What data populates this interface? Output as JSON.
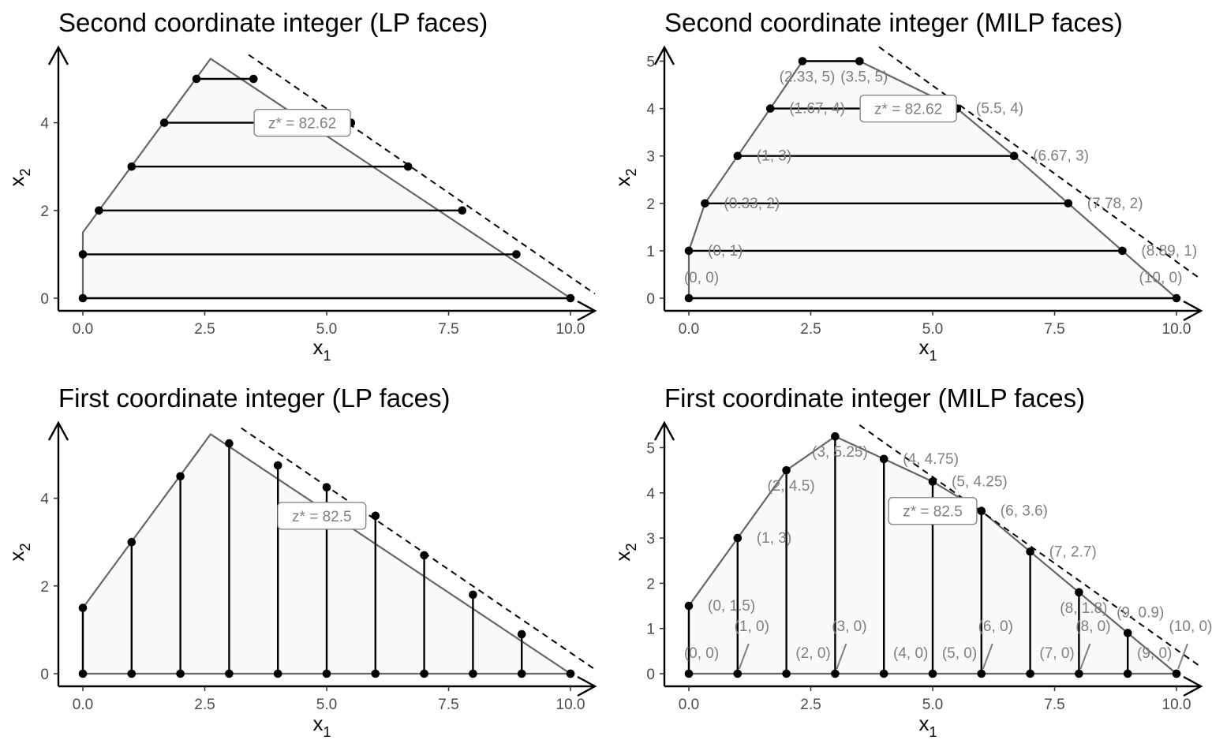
{
  "chart_data": [
    {
      "type": "line",
      "panel": "top-left",
      "title": "Second coordinate integer (LP faces)",
      "xlabel": "x",
      "xlabel_sub": "1",
      "ylabel": "x",
      "ylabel_sub": "2",
      "xlim": [
        0,
        10
      ],
      "ylim": [
        0,
        5.46
      ],
      "xticks": [
        0,
        2.5,
        5,
        7.5,
        10
      ],
      "xtick_labels": [
        "0.0",
        "2.5",
        "5.0",
        "7.5",
        "10.0"
      ],
      "yticks": [
        0,
        2,
        4
      ],
      "ytick_labels": [
        "0",
        "2",
        "4"
      ],
      "region": [
        [
          0,
          0
        ],
        [
          10,
          0
        ],
        [
          2.62,
          5.46
        ],
        [
          0,
          1.5
        ]
      ],
      "objective_line": [
        [
          3.4,
          5.55
        ],
        [
          10.5,
          0.1
        ]
      ],
      "objective_label": "z* = 82.62",
      "objective_label_at": [
        4.5,
        4.0
      ],
      "faces": [
        {
          "from": [
            0,
            0
          ],
          "to": [
            10,
            0
          ]
        },
        {
          "from": [
            0,
            1
          ],
          "to": [
            8.89,
            1
          ]
        },
        {
          "from": [
            0.33,
            2
          ],
          "to": [
            7.78,
            2
          ]
        },
        {
          "from": [
            1,
            3
          ],
          "to": [
            6.67,
            3
          ]
        },
        {
          "from": [
            1.67,
            4
          ],
          "to": [
            5.5,
            4
          ]
        },
        {
          "from": [
            2.33,
            5
          ],
          "to": [
            3.5,
            5
          ]
        }
      ],
      "point_labels": []
    },
    {
      "type": "line",
      "panel": "top-right",
      "title": "Second coordinate integer (MILP faces)",
      "xlabel": "x",
      "xlabel_sub": "1",
      "ylabel": "x",
      "ylabel_sub": "2",
      "xlim": [
        0,
        10
      ],
      "ylim": [
        0,
        5.2
      ],
      "xticks": [
        0,
        2.5,
        5,
        7.5,
        10
      ],
      "xtick_labels": [
        "0.0",
        "2.5",
        "5.0",
        "7.5",
        "10.0"
      ],
      "yticks": [
        0,
        1,
        2,
        3,
        4,
        5
      ],
      "ytick_labels": [
        "0",
        "1",
        "2",
        "3",
        "4",
        "5"
      ],
      "region": [
        [
          0,
          0
        ],
        [
          10,
          0
        ],
        [
          8.89,
          1
        ],
        [
          7.78,
          2
        ],
        [
          6.67,
          3
        ],
        [
          5.5,
          4
        ],
        [
          3.5,
          5
        ],
        [
          2.33,
          5
        ],
        [
          1.67,
          4
        ],
        [
          1,
          3
        ],
        [
          0.33,
          2
        ],
        [
          0,
          1
        ]
      ],
      "objective_line": [
        [
          3.9,
          5.3
        ],
        [
          10.5,
          0.4
        ]
      ],
      "objective_label": "z* = 82.62",
      "objective_label_at": [
        4.5,
        4.0
      ],
      "faces": [
        {
          "from": [
            0,
            0
          ],
          "to": [
            10,
            0
          ]
        },
        {
          "from": [
            0,
            1
          ],
          "to": [
            8.89,
            1
          ]
        },
        {
          "from": [
            0.33,
            2
          ],
          "to": [
            7.78,
            2
          ]
        },
        {
          "from": [
            1,
            3
          ],
          "to": [
            6.67,
            3
          ]
        },
        {
          "from": [
            1.67,
            4
          ],
          "to": [
            5.5,
            4
          ]
        },
        {
          "from": [
            2.33,
            5
          ],
          "to": [
            3.5,
            5
          ]
        }
      ],
      "point_labels": [
        {
          "text": "(0, 0)",
          "at": [
            0,
            0
          ],
          "anchor": "above"
        },
        {
          "text": "(10, 0)",
          "at": [
            10,
            0
          ],
          "anchor": "above-left"
        },
        {
          "text": "(0, 1)",
          "at": [
            0,
            1
          ],
          "anchor": "right"
        },
        {
          "text": "(8.89, 1)",
          "at": [
            8.89,
            1
          ],
          "anchor": "right"
        },
        {
          "text": "(0.33, 2)",
          "at": [
            0.33,
            2
          ],
          "anchor": "right"
        },
        {
          "text": "(7.78, 2)",
          "at": [
            7.78,
            2
          ],
          "anchor": "right"
        },
        {
          "text": "(1, 3)",
          "at": [
            1,
            3
          ],
          "anchor": "right"
        },
        {
          "text": "(6.67, 3)",
          "at": [
            6.67,
            3
          ],
          "anchor": "right"
        },
        {
          "text": "(1.67, 4)",
          "at": [
            1.67,
            4
          ],
          "anchor": "right"
        },
        {
          "text": "(5.5, 4)",
          "at": [
            5.5,
            4
          ],
          "anchor": "right"
        },
        {
          "text": "(2.33, 5)",
          "at": [
            2.33,
            5
          ],
          "anchor": "below"
        },
        {
          "text": "(3.5, 5)",
          "at": [
            3.5,
            5
          ],
          "anchor": "below"
        }
      ]
    },
    {
      "type": "line",
      "panel": "bottom-left",
      "title": "First coordinate integer (LP faces)",
      "xlabel": "x",
      "xlabel_sub": "1",
      "ylabel": "x",
      "ylabel_sub": "2",
      "xlim": [
        0,
        10
      ],
      "ylim": [
        0,
        5.46
      ],
      "xticks": [
        0,
        2.5,
        5,
        7.5,
        10
      ],
      "xtick_labels": [
        "0.0",
        "2.5",
        "5.0",
        "7.5",
        "10.0"
      ],
      "yticks": [
        0,
        2,
        4
      ],
      "ytick_labels": [
        "0",
        "2",
        "4"
      ],
      "region": [
        [
          0,
          0
        ],
        [
          10,
          0
        ],
        [
          2.62,
          5.46
        ],
        [
          0,
          1.5
        ]
      ],
      "objective_line": [
        [
          3.25,
          5.6
        ],
        [
          10.5,
          0.1
        ]
      ],
      "objective_label": "z* = 82.5",
      "objective_label_at": [
        4.9,
        3.6
      ],
      "faces": [
        {
          "from": [
            0,
            0
          ],
          "to": [
            0,
            1.5
          ]
        },
        {
          "from": [
            1,
            0
          ],
          "to": [
            1,
            3
          ]
        },
        {
          "from": [
            2,
            0
          ],
          "to": [
            2,
            4.5
          ]
        },
        {
          "from": [
            3,
            0
          ],
          "to": [
            3,
            5.25
          ]
        },
        {
          "from": [
            4,
            0
          ],
          "to": [
            4,
            4.75
          ]
        },
        {
          "from": [
            5,
            0
          ],
          "to": [
            5,
            4.25
          ]
        },
        {
          "from": [
            6,
            0
          ],
          "to": [
            6,
            3.6
          ]
        },
        {
          "from": [
            7,
            0
          ],
          "to": [
            7,
            2.7
          ]
        },
        {
          "from": [
            8,
            0
          ],
          "to": [
            8,
            1.8
          ]
        },
        {
          "from": [
            9,
            0
          ],
          "to": [
            9,
            0.9
          ]
        },
        {
          "from": [
            10,
            0
          ],
          "to": [
            10,
            0
          ]
        }
      ],
      "point_labels": []
    },
    {
      "type": "line",
      "panel": "bottom-right",
      "title": "First coordinate integer (MILP faces)",
      "xlabel": "x",
      "xlabel_sub": "1",
      "ylabel": "x",
      "ylabel_sub": "2",
      "xlim": [
        0,
        10
      ],
      "ylim": [
        0,
        5.25
      ],
      "xticks": [
        0,
        2.5,
        5,
        7.5,
        10
      ],
      "xtick_labels": [
        "0.0",
        "2.5",
        "5.0",
        "7.5",
        "10.0"
      ],
      "yticks": [
        0,
        1,
        2,
        3,
        4,
        5
      ],
      "ytick_labels": [
        "0",
        "1",
        "2",
        "3",
        "4",
        "5"
      ],
      "region": [
        [
          0,
          0
        ],
        [
          10,
          0
        ],
        [
          9,
          0.9
        ],
        [
          8,
          1.8
        ],
        [
          7,
          2.7
        ],
        [
          6,
          3.6
        ],
        [
          5,
          4.25
        ],
        [
          4,
          4.75
        ],
        [
          3,
          5.25
        ],
        [
          2,
          4.5
        ],
        [
          1,
          3
        ],
        [
          0,
          1.5
        ]
      ],
      "objective_line": [
        [
          3.5,
          5.5
        ],
        [
          10.5,
          0.15
        ]
      ],
      "objective_label": "z* = 82.5",
      "objective_label_at": [
        5,
        3.6
      ],
      "faces": [
        {
          "from": [
            0,
            0
          ],
          "to": [
            0,
            1.5
          ]
        },
        {
          "from": [
            1,
            0
          ],
          "to": [
            1,
            3
          ]
        },
        {
          "from": [
            2,
            0
          ],
          "to": [
            2,
            4.5
          ]
        },
        {
          "from": [
            3,
            0
          ],
          "to": [
            3,
            5.25
          ]
        },
        {
          "from": [
            4,
            0
          ],
          "to": [
            4,
            4.75
          ]
        },
        {
          "from": [
            5,
            0
          ],
          "to": [
            5,
            4.25
          ]
        },
        {
          "from": [
            6,
            0
          ],
          "to": [
            6,
            3.6
          ]
        },
        {
          "from": [
            7,
            0
          ],
          "to": [
            7,
            2.7
          ]
        },
        {
          "from": [
            8,
            0
          ],
          "to": [
            8,
            1.8
          ]
        },
        {
          "from": [
            9,
            0
          ],
          "to": [
            9,
            0.9
          ]
        },
        {
          "from": [
            10,
            0
          ],
          "to": [
            10,
            0
          ]
        }
      ],
      "point_labels": [
        {
          "text": "(0, 0)",
          "at": [
            0,
            0
          ],
          "anchor": "above"
        },
        {
          "text": "(1, 0)",
          "at": [
            1,
            0
          ],
          "anchor": "leader"
        },
        {
          "text": "(2, 0)",
          "at": [
            2,
            0
          ],
          "anchor": "above-right"
        },
        {
          "text": "(3, 0)",
          "at": [
            3,
            0
          ],
          "anchor": "leader"
        },
        {
          "text": "(4, 0)",
          "at": [
            4,
            0
          ],
          "anchor": "above-right"
        },
        {
          "text": "(5, 0)",
          "at": [
            5,
            0
          ],
          "anchor": "above-right"
        },
        {
          "text": "(6, 0)",
          "at": [
            6,
            0
          ],
          "anchor": "leader"
        },
        {
          "text": "(7, 0)",
          "at": [
            7,
            0
          ],
          "anchor": "above-right"
        },
        {
          "text": "(8, 0)",
          "at": [
            8,
            0
          ],
          "anchor": "leader"
        },
        {
          "text": "(9, 0)",
          "at": [
            9,
            0
          ],
          "anchor": "above-right"
        },
        {
          "text": "(10, 0)",
          "at": [
            10,
            0
          ],
          "anchor": "leader"
        },
        {
          "text": "(0, 1.5)",
          "at": [
            0,
            1.5
          ],
          "anchor": "right"
        },
        {
          "text": "(1, 3)",
          "at": [
            1,
            3
          ],
          "anchor": "right"
        },
        {
          "text": "(2, 4.5)",
          "at": [
            2,
            4.5
          ],
          "anchor": "below"
        },
        {
          "text": "(3, 5.25)",
          "at": [
            3,
            5.25
          ],
          "anchor": "below"
        },
        {
          "text": "(4, 4.75)",
          "at": [
            4,
            4.75
          ],
          "anchor": "right"
        },
        {
          "text": "(5, 4.25)",
          "at": [
            5,
            4.25
          ],
          "anchor": "right"
        },
        {
          "text": "(6, 3.6)",
          "at": [
            6,
            3.6
          ],
          "anchor": "right"
        },
        {
          "text": "(7, 2.7)",
          "at": [
            7,
            2.7
          ],
          "anchor": "right"
        },
        {
          "text": "(8, 1.8)",
          "at": [
            8,
            1.8
          ],
          "anchor": "below"
        },
        {
          "text": "(9, 0.9)",
          "at": [
            9,
            0.9
          ],
          "anchor": "above"
        }
      ]
    }
  ],
  "colors": {
    "region_fill": "#f9f9f9",
    "region_edge": "#666666",
    "face_line": "#000000",
    "label_text": "#7f7f7f",
    "tick_text": "#4d4d4d"
  }
}
